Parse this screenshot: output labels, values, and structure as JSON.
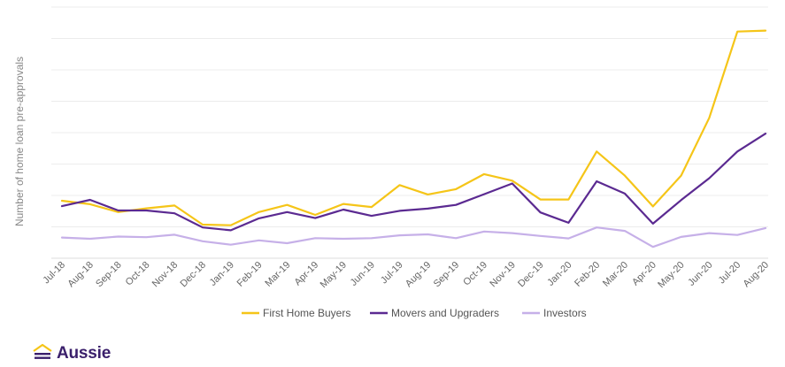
{
  "chart_data": {
    "type": "line",
    "ylabel": "Number of home loan pre-approvals",
    "categories": [
      "Jul-18",
      "Aug-18",
      "Sep-18",
      "Oct-18",
      "Nov-18",
      "Dec-18",
      "Jan-19",
      "Feb-19",
      "Mar-19",
      "Apr-19",
      "May-19",
      "Jun-19",
      "Jul-19",
      "Aug-19",
      "Sep-19",
      "Oct-19",
      "Nov-19",
      "Dec-19",
      "Jan-20",
      "Feb-20",
      "Mar-20",
      "Apr-20",
      "May-20",
      "Jun-20",
      "Jul-20",
      "Aug-20"
    ],
    "ylim": [
      0,
      8
    ],
    "grid": true,
    "legend_position": "bottom",
    "series": [
      {
        "name": "First Home Buyers",
        "color": "#f5c518",
        "values": [
          1.83,
          1.72,
          1.47,
          1.59,
          1.68,
          1.07,
          1.05,
          1.47,
          1.7,
          1.38,
          1.73,
          1.63,
          2.33,
          2.03,
          2.2,
          2.68,
          2.47,
          1.87,
          1.87,
          3.4,
          2.63,
          1.65,
          2.63,
          4.47,
          7.22,
          7.25
        ]
      },
      {
        "name": "Movers and Upgraders",
        "color": "#5b2a91",
        "values": [
          1.66,
          1.86,
          1.52,
          1.52,
          1.43,
          0.98,
          0.89,
          1.27,
          1.47,
          1.28,
          1.55,
          1.35,
          1.51,
          1.58,
          1.7,
          2.04,
          2.38,
          1.46,
          1.13,
          2.45,
          2.06,
          1.1,
          1.85,
          2.55,
          3.4,
          3.97
        ]
      },
      {
        "name": "Investors",
        "color": "#c6b0e8",
        "values": [
          0.66,
          0.62,
          0.69,
          0.67,
          0.75,
          0.54,
          0.43,
          0.57,
          0.48,
          0.64,
          0.62,
          0.64,
          0.73,
          0.76,
          0.64,
          0.85,
          0.8,
          0.71,
          0.63,
          0.98,
          0.87,
          0.36,
          0.68,
          0.8,
          0.74,
          0.96
        ]
      }
    ]
  },
  "brand": {
    "name": "Aussie",
    "icon": "aussie-house-icon",
    "color": "#3a1f6b"
  }
}
